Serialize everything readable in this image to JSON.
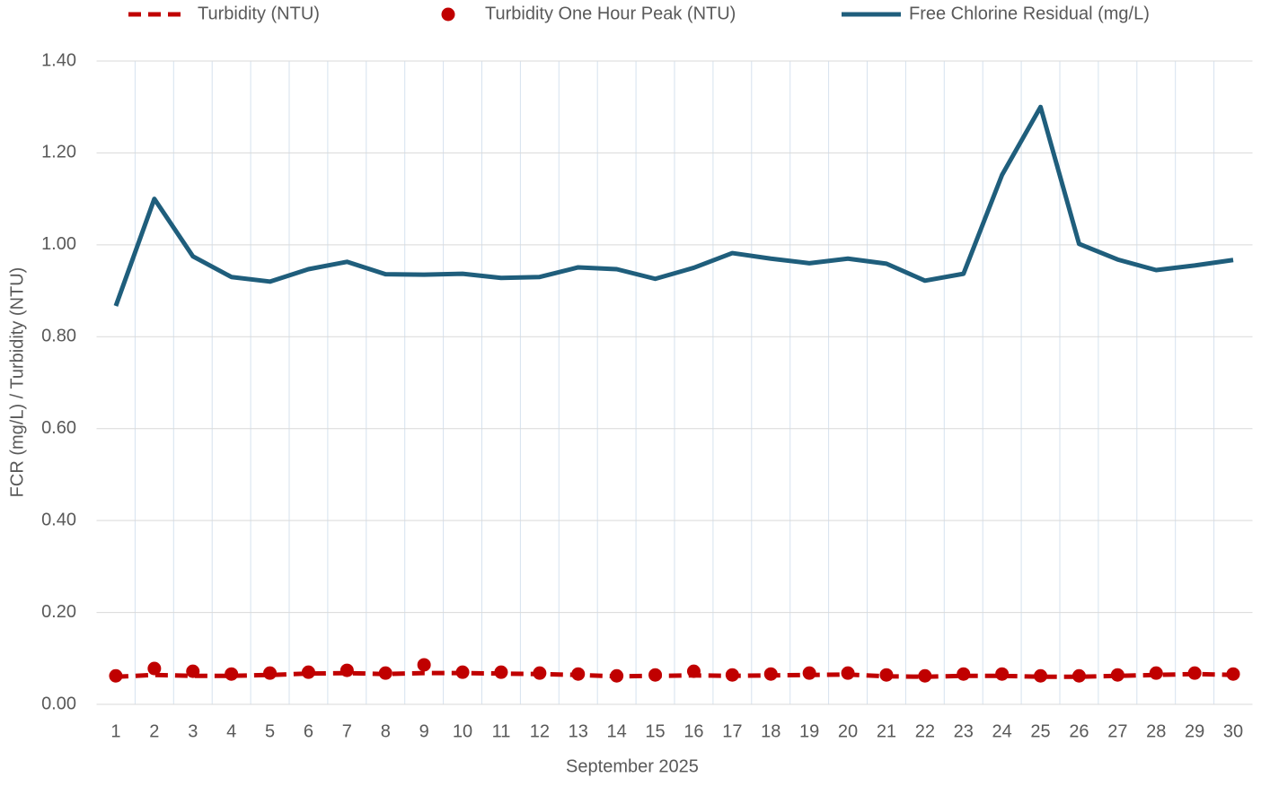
{
  "chart_data": {
    "type": "line",
    "x_label": "September 2025",
    "y_label": "FCR (mg/L) / Turbidity (NTU)",
    "categories": [
      "1",
      "2",
      "3",
      "4",
      "5",
      "6",
      "7",
      "8",
      "9",
      "10",
      "11",
      "12",
      "13",
      "14",
      "15",
      "16",
      "17",
      "18",
      "19",
      "20",
      "21",
      "22",
      "23",
      "24",
      "25",
      "26",
      "27",
      "28",
      "29",
      "30"
    ],
    "ylim": [
      0,
      1.4
    ],
    "yticks": [
      {
        "value": 0,
        "label": "0.00"
      },
      {
        "value": 0.2,
        "label": "0.20"
      },
      {
        "value": 0.4,
        "label": "0.40"
      },
      {
        "value": 0.6,
        "label": "0.60"
      },
      {
        "value": 0.8,
        "label": "0.80"
      },
      {
        "value": 1.0,
        "label": "1.00"
      },
      {
        "value": 1.2,
        "label": "1.20"
      },
      {
        "value": 1.4,
        "label": "1.40"
      }
    ],
    "grid": true,
    "legend": "top",
    "series": [
      {
        "name": "Turbidity (NTU)",
        "type": "line",
        "dashed": true,
        "color": "#c00000",
        "values": [
          0.06,
          0.064,
          0.062,
          0.062,
          0.064,
          0.067,
          0.068,
          0.066,
          0.068,
          0.068,
          0.067,
          0.066,
          0.064,
          0.061,
          0.062,
          0.063,
          0.062,
          0.063,
          0.064,
          0.065,
          0.061,
          0.06,
          0.062,
          0.062,
          0.06,
          0.06,
          0.062,
          0.064,
          0.066,
          0.064
        ]
      },
      {
        "name": "Turbidity One Hour Peak (NTU)",
        "type": "scatter",
        "color": "#c00000",
        "values": [
          0.062,
          0.078,
          0.072,
          0.066,
          0.068,
          0.07,
          0.074,
          0.068,
          0.086,
          0.07,
          0.07,
          0.068,
          0.066,
          0.062,
          0.064,
          0.072,
          0.064,
          0.066,
          0.068,
          0.068,
          0.064,
          0.062,
          0.066,
          0.066,
          0.062,
          0.062,
          0.064,
          0.068,
          0.068,
          0.066
        ]
      },
      {
        "name": "Free Chlorine Residual (mg/L)",
        "type": "line",
        "dashed": false,
        "color": "#1f5e7c",
        "values": [
          0.867,
          1.1,
          0.975,
          0.93,
          0.92,
          0.947,
          0.963,
          0.936,
          0.935,
          0.937,
          0.928,
          0.93,
          0.951,
          0.947,
          0.926,
          0.95,
          0.982,
          0.97,
          0.96,
          0.97,
          0.959,
          0.922,
          0.937,
          1.152,
          1.3,
          1.002,
          0.968,
          0.945,
          0.955,
          0.967
        ]
      }
    ]
  }
}
